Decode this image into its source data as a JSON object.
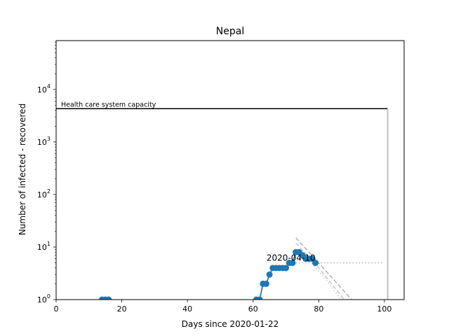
{
  "chart_data": {
    "type": "line",
    "title": "Nepal",
    "xlabel": "Days since 2020-01-22",
    "ylabel": "Number of infected - recovered",
    "xlim": [
      0,
      106
    ],
    "ylim_log10": [
      0,
      4.93
    ],
    "y_scale": "log",
    "x_ticks": [
      0,
      20,
      40,
      60,
      80,
      100
    ],
    "x_tick_labels": [
      "0",
      "20",
      "40",
      "60",
      "80",
      "100"
    ],
    "y_ticks": [
      1,
      10,
      100,
      1000,
      10000
    ],
    "y_tick_labels": [
      {
        "base": "10",
        "exp": "0"
      },
      {
        "base": "10",
        "exp": "1"
      },
      {
        "base": "10",
        "exp": "2"
      },
      {
        "base": "10",
        "exp": "3"
      },
      {
        "base": "10",
        "exp": "4"
      }
    ],
    "grid": false,
    "series": [
      {
        "color": "#1f77b4",
        "x": [
          14,
          15,
          16,
          61,
          62,
          63,
          64,
          65,
          66,
          67,
          68,
          69,
          70,
          71,
          72,
          73,
          74,
          75,
          76,
          77,
          78,
          79
        ],
        "y": [
          1,
          1,
          1,
          1,
          1,
          2,
          2,
          3,
          4,
          4,
          4,
          4,
          4,
          5,
          5,
          8,
          8,
          7,
          6,
          6,
          6,
          5
        ]
      }
    ],
    "capacity": {
      "label": "Health care system capacity",
      "value": 4300,
      "x_start": 0,
      "x_end": 101
    },
    "annotation": {
      "text": "2020-04-10",
      "x": 79,
      "y": 5
    },
    "projections": [
      {
        "style": "dotted",
        "color": "#b0b0b0",
        "x": [
          73,
          80,
          90,
          100
        ],
        "y": [
          5,
          5,
          5,
          5
        ]
      },
      {
        "style": "dashed",
        "color": "#b0b0b0",
        "x": [
          73,
          80,
          90
        ],
        "y": [
          15,
          5,
          1
        ]
      },
      {
        "style": "dashed",
        "color": "#c8c8c8",
        "x": [
          73,
          80,
          89
        ],
        "y": [
          12,
          4,
          0.8
        ]
      },
      {
        "style": "dotted",
        "color": "#c8c8c8",
        "x": [
          74,
          82,
          88
        ],
        "y": [
          9,
          2.5,
          0.8
        ]
      }
    ],
    "end_marker": {
      "color": "#bfbfbf",
      "x": 101,
      "y": 4300
    }
  }
}
